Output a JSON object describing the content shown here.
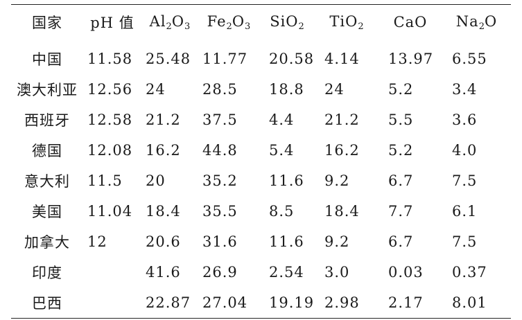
{
  "table": {
    "headers": [
      {
        "base": "国家",
        "parts": []
      },
      {
        "base": "pH 值",
        "parts": []
      },
      {
        "base": "Al",
        "parts": [
          {
            "sub": "2"
          },
          {
            "text": "O"
          },
          {
            "sub": "3"
          }
        ]
      },
      {
        "base": "Fe",
        "parts": [
          {
            "sub": "2"
          },
          {
            "text": "O"
          },
          {
            "sub": "3"
          }
        ]
      },
      {
        "base": "SiO",
        "parts": [
          {
            "sub": "2"
          }
        ]
      },
      {
        "base": "TiO",
        "parts": [
          {
            "sub": "2"
          }
        ]
      },
      {
        "base": "CaO",
        "parts": []
      },
      {
        "base": "Na",
        "parts": [
          {
            "sub": "2"
          },
          {
            "text": "O"
          }
        ]
      }
    ],
    "rows": [
      [
        "中国",
        "11.58",
        "25.48",
        "11.77",
        "20.58",
        "4.14",
        "13.97",
        "6.55"
      ],
      [
        "澳大利亚",
        "12.56",
        "24",
        "28.5",
        "18.8",
        "24",
        "5.2",
        "3.4"
      ],
      [
        "西班牙",
        "12.58",
        "21.2",
        "37.5",
        "4.4",
        "21.2",
        "5.5",
        "3.6"
      ],
      [
        "德国",
        "12.08",
        "16.2",
        "44.8",
        "5.4",
        "16.2",
        "5.2",
        "4.0"
      ],
      [
        "意大利",
        "11.5",
        "20",
        "35.2",
        "11.6",
        "9.2",
        "6.7",
        "7.5"
      ],
      [
        "美国",
        "11.04",
        "18.4",
        "35.5",
        "8.5",
        "18.4",
        "7.7",
        "6.1"
      ],
      [
        "加拿大",
        "12",
        "20.6",
        "31.6",
        "11.6",
        "9.2",
        "6.7",
        "7.5"
      ],
      [
        "印度",
        "",
        "41.6",
        "26.9",
        "2.54",
        "3.0",
        "0.03",
        "0.37"
      ],
      [
        "巴西",
        "",
        "22.87",
        "27.04",
        "19.19",
        "2.98",
        "2.17",
        "8.01"
      ]
    ]
  }
}
